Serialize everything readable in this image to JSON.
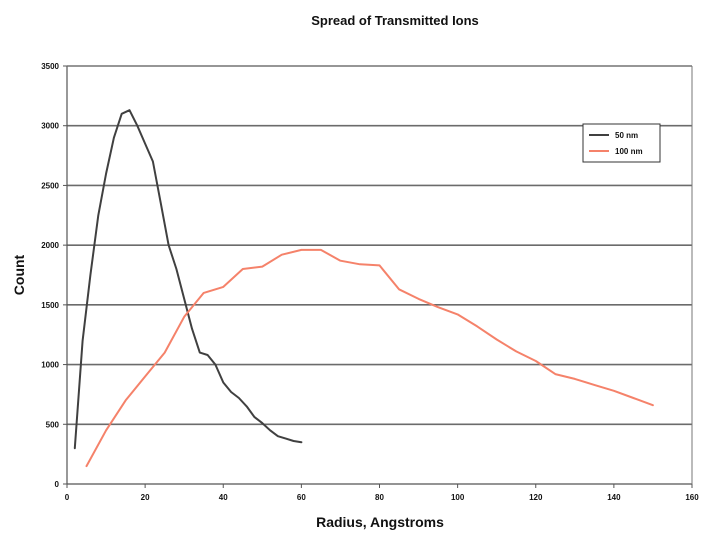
{
  "chart_data": {
    "type": "line",
    "title": "Spread of Transmitted Ions",
    "xlabel": "Radius, Angstroms",
    "ylabel": "Count",
    "xlim": [
      0,
      160
    ],
    "ylim": [
      0,
      3500
    ],
    "x_ticks": [
      0,
      20,
      40,
      60,
      80,
      100,
      120,
      140,
      160
    ],
    "y_ticks": [
      0,
      500,
      1000,
      1500,
      2000,
      2500,
      3000,
      3500
    ],
    "grid": "horizontal",
    "legend_position": "top-right",
    "series": [
      {
        "name": "50 nm",
        "color": "#404040",
        "x": [
          2,
          4,
          6,
          8,
          10,
          12,
          14,
          16,
          18,
          20,
          22,
          24,
          26,
          28,
          30,
          32,
          34,
          36,
          38,
          40,
          42,
          44,
          46,
          48,
          50,
          52,
          54,
          56,
          58,
          60
        ],
        "y": [
          300,
          1200,
          1750,
          2250,
          2600,
          2900,
          3100,
          3130,
          3000,
          2850,
          2700,
          2350,
          2000,
          1800,
          1550,
          1300,
          1100,
          1080,
          1000,
          850,
          770,
          720,
          650,
          560,
          510,
          450,
          400,
          380,
          360,
          350
        ]
      },
      {
        "name": "100 nm",
        "color": "#f5826a",
        "x": [
          5,
          10,
          15,
          20,
          25,
          30,
          35,
          40,
          45,
          50,
          55,
          60,
          65,
          70,
          75,
          80,
          85,
          90,
          95,
          100,
          105,
          110,
          115,
          120,
          125,
          130,
          135,
          140,
          145,
          150
        ],
        "y": [
          150,
          450,
          700,
          900,
          1100,
          1400,
          1600,
          1650,
          1800,
          1820,
          1920,
          1960,
          1960,
          1870,
          1840,
          1830,
          1630,
          1550,
          1480,
          1420,
          1320,
          1210,
          1110,
          1030,
          920,
          880,
          830,
          780,
          720,
          660
        ]
      }
    ]
  }
}
